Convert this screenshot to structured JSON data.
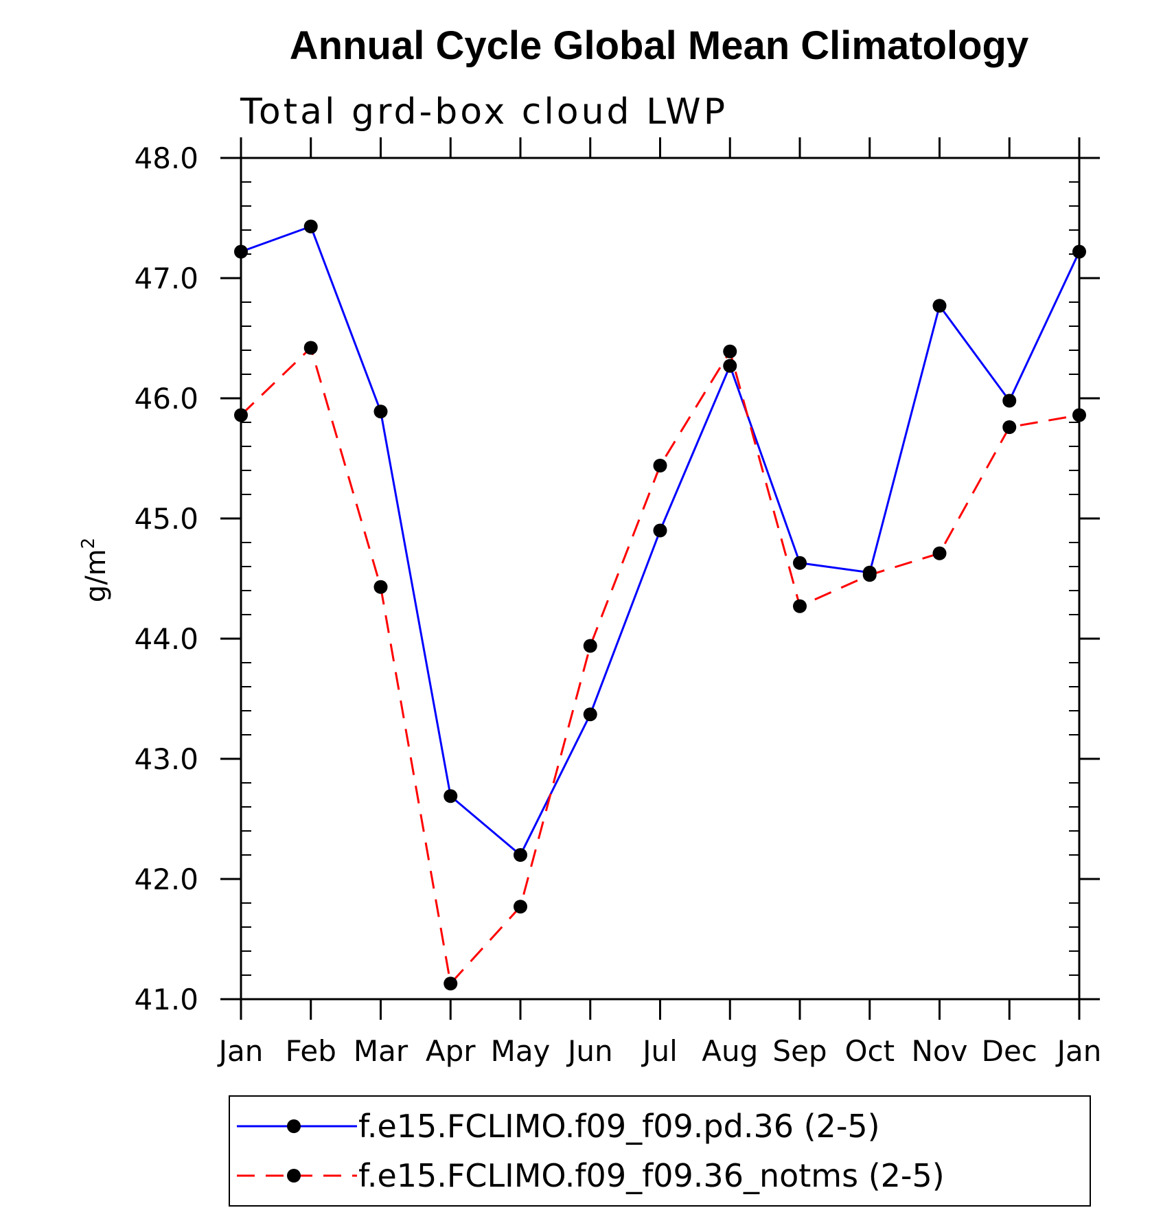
{
  "chart_data": {
    "type": "line",
    "title": "Annual Cycle Global Mean Climatology",
    "subtitle": "Total grd-box cloud LWP",
    "ylabel": "g/m",
    "ylabel_sup": "2",
    "ylim": [
      41.0,
      48.0
    ],
    "y_ticks": [
      "41.0",
      "42.0",
      "43.0",
      "44.0",
      "45.0",
      "46.0",
      "47.0",
      "48.0"
    ],
    "y_minor_step": 0.2,
    "categories": [
      "Jan",
      "Feb",
      "Mar",
      "Apr",
      "May",
      "Jun",
      "Jul",
      "Aug",
      "Sep",
      "Oct",
      "Nov",
      "Dec",
      "Jan"
    ],
    "series": [
      {
        "name": "f.e15.FCLIMO.f09_f09.pd.36 (2-5)",
        "color": "#0000ff",
        "dash": "solid",
        "values": [
          47.22,
          47.43,
          45.89,
          42.69,
          42.2,
          43.37,
          44.9,
          46.27,
          44.63,
          44.55,
          46.77,
          45.98,
          47.22
        ]
      },
      {
        "name": "f.e15.FCLIMO.f09_f09.36_notms (2-5)",
        "color": "#ff0000",
        "dash": "dashed",
        "values": [
          45.86,
          46.42,
          44.43,
          41.13,
          41.77,
          43.94,
          45.44,
          46.39,
          44.27,
          44.53,
          44.71,
          45.76,
          45.86
        ]
      }
    ],
    "marker_color": "#000000",
    "legend_position": "bottom"
  }
}
